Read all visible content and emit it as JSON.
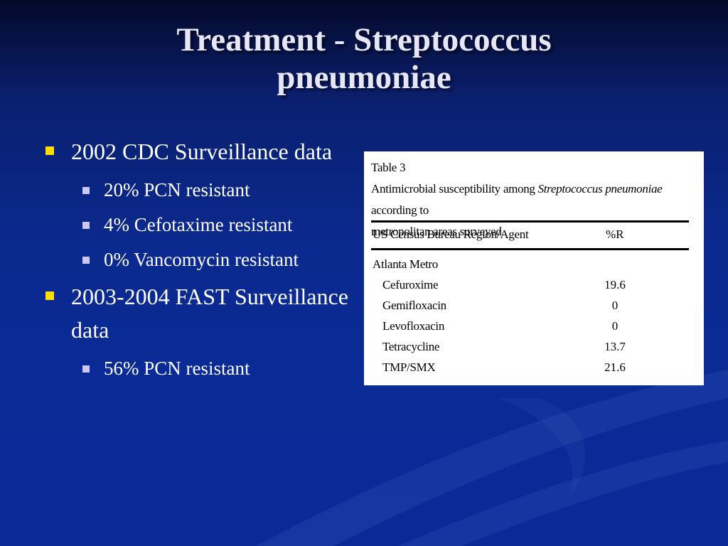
{
  "title": {
    "line1": "Treatment - Streptococcus",
    "line2": "pneumoniae"
  },
  "bullets": [
    {
      "text": "2002 CDC Surveillance data",
      "sub": [
        "20% PCN resistant",
        "4% Cefotaxime resistant",
        "0% Vancomycin resistant"
      ]
    },
    {
      "text": "2003-2004 FAST Surveillance data",
      "sub": [
        "56% PCN resistant"
      ]
    }
  ],
  "table": {
    "caption_line1": "Table 3",
    "caption_line2_pre": "Antimicrobial susceptibility among ",
    "caption_line2_italic": "Streptococcus pneumoniae",
    "caption_line2_post": " according to",
    "caption_line3": "metropolitan areas surveyed",
    "col1_header": "US Census Bureau Region/Agent",
    "col2_header": "%R",
    "group": "Atlanta Metro",
    "rows": [
      {
        "agent": "Cefuroxime",
        "value": "19.6"
      },
      {
        "agent": "Gemifloxacin",
        "value": "0"
      },
      {
        "agent": "Levofloxacin",
        "value": "0"
      },
      {
        "agent": "Tetracycline",
        "value": "13.7"
      },
      {
        "agent": "TMP/SMX",
        "value": "21.6"
      }
    ]
  },
  "colors": {
    "bullet_level1": "#ffdd00",
    "bullet_level2": "#c9c9f2",
    "title_text": "#e6e6f6"
  }
}
